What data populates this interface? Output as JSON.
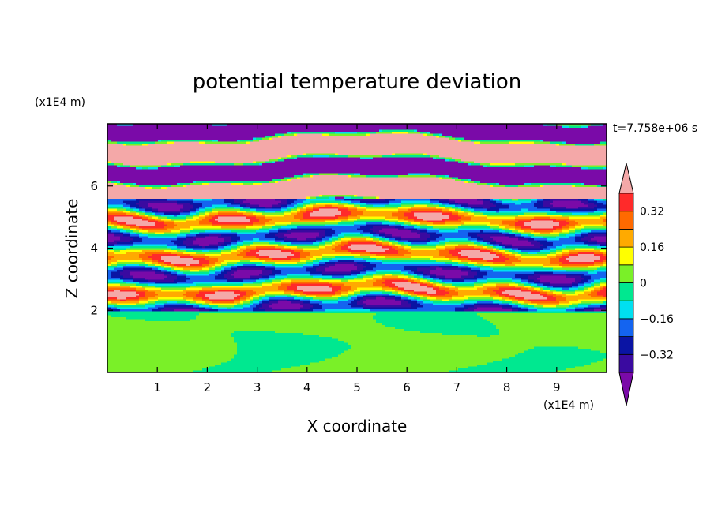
{
  "chart_data": {
    "type": "heatmap",
    "title": "potential temperature deviation",
    "xlabel": "X coordinate",
    "ylabel": "Z coordinate",
    "x_unit": "(x1E4 m)",
    "y_unit": "(x1E4 m)",
    "time_label": "t=7.758e+06 s",
    "xlim": [
      0,
      10
    ],
    "ylim": [
      0,
      8
    ],
    "x_ticks": [
      1,
      2,
      3,
      4,
      5,
      6,
      7,
      8,
      9
    ],
    "x_tick_labels": [
      "1",
      "2",
      "3",
      "4",
      "5",
      "6",
      "7",
      "8",
      "9"
    ],
    "y_ticks": [
      2,
      4,
      6
    ],
    "y_tick_labels": [
      "2",
      "4",
      "6"
    ],
    "colorbar": {
      "levels": [
        -0.4,
        -0.32,
        -0.24,
        -0.16,
        -0.08,
        0,
        0.08,
        0.16,
        0.24,
        0.32,
        0.4
      ],
      "tick_values": [
        0.32,
        0.16,
        0,
        -0.16,
        -0.32
      ],
      "tick_labels": [
        "0.32",
        "0.16",
        "0",
        "−0.16",
        "−0.32"
      ],
      "colors": [
        "#7a0aa8",
        "#3a0aa0",
        "#0a14a4",
        "#1464f0",
        "#00e0f0",
        "#00e890",
        "#7af028",
        "#ffff00",
        "#ffaa00",
        "#ff6a00",
        "#ff2a2a",
        "#f4a8a8"
      ],
      "extend": "both"
    },
    "field_description_values": {
      "upper_layer_z_range": [
        2,
        8
      ],
      "lower_layer_z_range": [
        0,
        2
      ],
      "lower_layer_dominant_colors": [
        "#7af028",
        "#00e890"
      ]
    }
  }
}
